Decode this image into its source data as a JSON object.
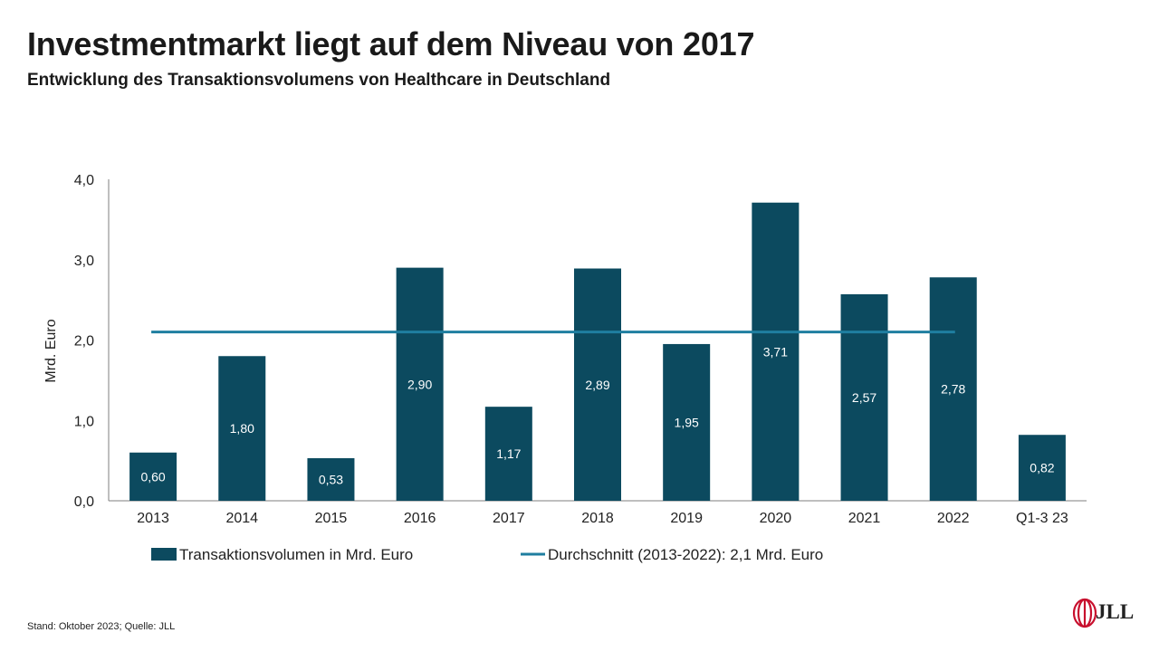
{
  "title": "Investmentmarkt liegt auf dem Niveau von 2017",
  "subtitle": "Entwicklung des Transaktionsvolumens von Healthcare in Deutschland",
  "footer": "Stand: Oktober 2023; Quelle: JLL",
  "logo_text": "JLL",
  "colors": {
    "bar": "#0c4a5f",
    "line": "#1f7ea0",
    "axis": "#7f7f7f"
  },
  "chart_data": {
    "type": "bar",
    "categories": [
      "2013",
      "2014",
      "2015",
      "2016",
      "2017",
      "2018",
      "2019",
      "2020",
      "2021",
      "2022",
      "Q1-3 23"
    ],
    "series": [
      {
        "name": "Transaktionsvolumen in Mrd. Euro",
        "type": "bar",
        "values": [
          0.6,
          1.8,
          0.53,
          2.9,
          1.17,
          2.89,
          1.95,
          3.71,
          2.57,
          2.78,
          0.82
        ],
        "labels": [
          "0,60",
          "1,80",
          "0,53",
          "2,90",
          "1,17",
          "2,89",
          "1,95",
          "3,71",
          "2,57",
          "2,78",
          "0,82"
        ]
      },
      {
        "name": "Durchschnitt (2013-2022): 2,1 Mrd. Euro",
        "type": "line",
        "value": 2.1,
        "x_range": [
          "2013",
          "2022"
        ]
      }
    ],
    "ylabel": "Mrd. Euro",
    "xlabel": "",
    "ylim": [
      0,
      4
    ],
    "yticks": [
      0,
      1,
      2,
      3,
      4
    ],
    "ytick_labels": [
      "0,0",
      "1,0",
      "2,0",
      "3,0",
      "4,0"
    ],
    "grid": false,
    "legend_position": "bottom"
  }
}
